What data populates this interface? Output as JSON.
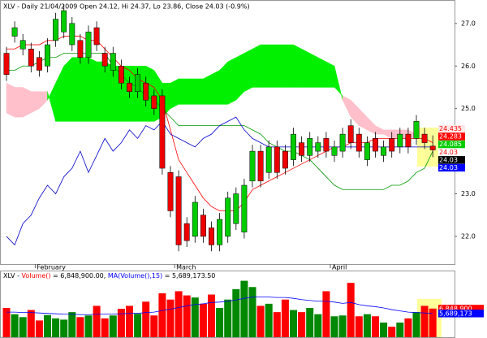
{
  "chart_data": {
    "type": "candlestick",
    "title": "XLV - Daily 21/04/2009 Open 24.12, Hi 24.37, Lo 23.86, Close 24.03 (-0.9%)",
    "categories": [
      null,
      null,
      null,
      null,
      "February",
      null,
      null,
      null,
      null,
      null,
      null,
      null,
      null,
      null,
      null,
      null,
      null,
      null,
      null,
      null,
      null,
      "March",
      null,
      null,
      null,
      null,
      null,
      null,
      null,
      null,
      null,
      null,
      null,
      null,
      null,
      null,
      null,
      null,
      null,
      null,
      "April",
      null,
      null,
      null,
      null,
      null,
      null,
      null,
      null,
      null,
      null,
      null,
      null
    ],
    "open": [
      26.3,
      26.7,
      26.4,
      26.4,
      26.2,
      26.0,
      26.6,
      26.8,
      26.5,
      26.6,
      26.2,
      26.9,
      26.3,
      25.9,
      26.0,
      25.6,
      25.4,
      25.6,
      25.3,
      25.3,
      23.5,
      23.4,
      22.3,
      22.0,
      22.5,
      22.2,
      21.8,
      22.0,
      22.3,
      22.1,
      23.3,
      24.0,
      23.5,
      24.1,
      24.0,
      23.8,
      24.2,
      23.9,
      24.0,
      24.3,
      23.9,
      24.0,
      24.6,
      24.4,
      23.8,
      24.3,
      23.9,
      24.3,
      24.1,
      24.4,
      24.3,
      24.4,
      24.12
    ],
    "high": [
      26.45,
      27.05,
      26.75,
      26.55,
      26.35,
      26.65,
      27.25,
      27.45,
      27.15,
      26.75,
      26.95,
      27.05,
      26.45,
      26.45,
      26.15,
      25.75,
      25.95,
      25.75,
      25.45,
      25.45,
      23.65,
      23.55,
      22.45,
      22.95,
      22.65,
      22.35,
      22.55,
      23.05,
      23.15,
      23.35,
      24.15,
      24.15,
      24.25,
      24.25,
      24.15,
      24.55,
      24.35,
      24.45,
      24.35,
      24.45,
      24.25,
      24.55,
      24.75,
      24.55,
      24.35,
      24.45,
      24.25,
      24.45,
      24.55,
      24.55,
      24.85,
      24.55,
      24.37
    ],
    "low": [
      25.65,
      26.55,
      26.25,
      25.85,
      25.75,
      25.85,
      26.45,
      26.65,
      26.35,
      26.05,
      26.05,
      26.35,
      25.85,
      25.75,
      25.45,
      25.25,
      25.25,
      25.05,
      24.85,
      23.45,
      22.45,
      21.65,
      21.75,
      21.85,
      21.85,
      21.65,
      21.65,
      21.85,
      22.15,
      21.95,
      23.15,
      23.15,
      23.35,
      23.35,
      23.45,
      23.65,
      23.75,
      23.75,
      23.85,
      23.85,
      23.75,
      23.85,
      24.05,
      23.85,
      23.65,
      23.85,
      23.75,
      23.85,
      23.95,
      23.95,
      24.15,
      24.05,
      23.86
    ],
    "close": [
      25.8,
      26.9,
      26.6,
      26.0,
      25.9,
      26.5,
      27.1,
      27.3,
      27.0,
      26.2,
      26.8,
      26.5,
      26.0,
      26.3,
      25.6,
      25.4,
      25.8,
      25.2,
      25.0,
      23.6,
      22.6,
      21.8,
      21.9,
      22.8,
      22.0,
      21.8,
      22.4,
      22.9,
      23.0,
      23.2,
      24.0,
      23.3,
      24.1,
      23.5,
      23.6,
      24.4,
      23.9,
      24.3,
      24.2,
      24.0,
      24.1,
      24.4,
      24.2,
      24.0,
      24.2,
      24.0,
      24.1,
      24.0,
      24.4,
      24.1,
      24.7,
      24.2,
      24.03
    ],
    "up_color": "#00cc00",
    "down_color": "#ee0000",
    "cloud": {
      "span_a": [
        24.9,
        24.8,
        24.8,
        24.9,
        25.0,
        25.2,
        25.6,
        26.0,
        26.2,
        26.2,
        26.2,
        26.1,
        26.1,
        26.0,
        26.0,
        26.0,
        26.0,
        26.0,
        25.9,
        25.6,
        25.6,
        25.7,
        25.7,
        25.7,
        25.7,
        25.8,
        25.9,
        26.1,
        26.2,
        26.3,
        26.4,
        26.5,
        26.5,
        26.5,
        26.5,
        26.5,
        26.4,
        26.3,
        26.2,
        26.1,
        26.0,
        25.2,
        24.8,
        24.6,
        24.5,
        24.4,
        24.4,
        24.3,
        24.3,
        24.3,
        24.3,
        24.2,
        24.2
      ],
      "span_b": [
        25.6,
        25.5,
        25.5,
        25.4,
        25.4,
        25.4,
        24.7,
        24.7,
        24.7,
        24.7,
        24.7,
        24.7,
        24.7,
        24.7,
        24.7,
        24.7,
        24.7,
        24.7,
        24.7,
        24.8,
        25.0,
        25.1,
        25.1,
        25.1,
        25.1,
        25.1,
        25.1,
        25.1,
        25.2,
        25.4,
        25.5,
        25.5,
        25.5,
        25.5,
        25.5,
        25.5,
        25.5,
        25.5,
        25.5,
        25.5,
        25.5,
        25.3,
        25.2,
        25.0,
        24.8,
        24.6,
        24.5,
        24.5,
        24.5,
        24.5,
        24.4,
        24.4,
        24.3
      ],
      "up_color": "#00f000",
      "down_color": "#ffc0cb"
    },
    "series": [
      {
        "color": "#ff0000",
        "values": [
          26.4,
          26.4,
          26.5,
          26.5,
          26.5,
          26.6,
          26.6,
          26.7,
          26.7,
          26.7,
          26.6,
          26.6,
          26.4,
          26.2,
          26.0,
          25.9,
          25.7,
          25.6,
          25.5,
          25.2,
          24.5,
          23.8,
          23.5,
          23.2,
          22.9,
          22.7,
          22.6,
          22.6,
          22.6,
          22.8,
          23.1,
          23.2,
          23.3,
          23.4,
          23.5,
          23.6,
          23.7,
          23.8,
          23.9,
          24.0,
          24.1,
          24.1,
          24.2,
          24.2,
          24.2,
          24.3,
          24.3,
          24.3,
          24.3,
          24.3,
          24.3,
          24.3,
          24.2
        ]
      },
      {
        "color": "#009900",
        "values": [
          25.9,
          25.9,
          26.0,
          26.0,
          26.1,
          26.2,
          26.2,
          26.3,
          26.3,
          26.3,
          26.3,
          26.3,
          26.3,
          26.0,
          25.8,
          25.6,
          25.5,
          25.3,
          25.2,
          25.0,
          24.8,
          24.6,
          24.6,
          24.6,
          24.6,
          24.6,
          24.6,
          24.6,
          24.6,
          24.6,
          24.5,
          24.4,
          24.2,
          24.1,
          24.0,
          24.0,
          23.9,
          23.8,
          23.6,
          23.4,
          23.2,
          23.1,
          23.1,
          23.1,
          23.1,
          23.1,
          23.1,
          23.2,
          23.2,
          23.3,
          23.5,
          23.6,
          24.0
        ]
      },
      {
        "color": "#0000cc",
        "values": [
          22.0,
          21.8,
          22.3,
          22.5,
          22.9,
          23.2,
          23.0,
          23.4,
          23.6,
          24.0,
          23.5,
          23.9,
          24.3,
          24.0,
          24.2,
          24.5,
          24.3,
          24.6,
          24.5,
          24.7,
          24.4,
          24.3,
          24.2,
          24.1,
          24.3,
          24.4,
          24.6,
          24.7,
          24.8,
          24.5,
          24.3,
          24.2,
          24.1,
          24.1,
          24.1,
          24.1,
          24.1,
          24.1,
          24.1,
          24.1,
          24.1,
          24.1,
          24.1,
          24.1,
          24.1,
          24.1,
          24.1,
          24.1,
          24.1,
          24.1,
          24.1,
          24.1,
          24.1
        ]
      }
    ],
    "ylim": [
      21.35,
      27.55
    ],
    "yticks": [
      {
        "value": 22,
        "label": "22.0"
      },
      {
        "value": 23,
        "label": "23.0"
      },
      {
        "value": 25,
        "label": "25.0"
      },
      {
        "value": 26,
        "label": "26.0"
      },
      {
        "value": 27,
        "label": "27.0"
      }
    ],
    "price_tags": [
      {
        "value": 24.435,
        "color": "#ffe8e8",
        "text_color": "#ff0000"
      },
      {
        "value": 24.283,
        "color": "#ff0000",
        "text_color": "#ffffff"
      },
      {
        "value": 24.085,
        "color": "#00cc00",
        "text_color": "#ffffff"
      },
      {
        "value": 24.03,
        "color": "#ffffff",
        "text_color": "#ff0000"
      },
      {
        "value": 24.03,
        "color": "#000000",
        "text_color": "#ffffff"
      },
      {
        "value": 24.03,
        "color": "#0000ff",
        "text_color": "#ffffff"
      }
    ],
    "volume": {
      "title_parts": [
        {
          "text": "XLV - ",
          "color": "#000000"
        },
        {
          "text": "Volume()",
          "color": "#ff0000"
        },
        {
          "text": " = 6,848,900.00, ",
          "color": "#000000"
        },
        {
          "text": "MA(Volume(),15)",
          "color": "#0000ff"
        },
        {
          "text": " = 5,689,173.50",
          "color": "#000000"
        }
      ],
      "values": [
        7000000,
        5500000,
        4800000,
        6500000,
        4000000,
        5300000,
        4500000,
        4200000,
        6000000,
        4800000,
        5200000,
        7500000,
        4500000,
        5200000,
        6800000,
        7500000,
        5600000,
        8500000,
        5200000,
        10500000,
        9000000,
        11000000,
        10000000,
        9500000,
        8000000,
        10200000,
        7000000,
        9000000,
        11500000,
        13500000,
        12000000,
        7500000,
        8000000,
        6000000,
        9000000,
        6500000,
        6000000,
        7000000,
        5500000,
        11000000,
        5000000,
        5200000,
        13000000,
        5000000,
        5500000,
        5000000,
        3500000,
        2500000,
        3500000,
        4500000,
        6000000,
        7500000,
        6848900
      ],
      "ma": {
        "color": "#0000ff",
        "values": [
          6000000,
          6000000,
          5900000,
          5900000,
          5800000,
          5700000,
          5600000,
          5500000,
          5500000,
          5400000,
          5400000,
          5500000,
          5500000,
          5500000,
          5600000,
          5700000,
          5700000,
          5900000,
          6000000,
          6400000,
          6700000,
          7100000,
          7500000,
          7800000,
          8000000,
          8300000,
          8400000,
          8600000,
          8900000,
          9300000,
          9600000,
          9600000,
          9600000,
          9500000,
          9500000,
          9300000,
          9000000,
          8800000,
          8600000,
          8600000,
          8400000,
          8100000,
          8300000,
          7800000,
          7500000,
          7300000,
          7000000,
          6600000,
          6300000,
          6000000,
          5900000,
          5800000,
          5689173.5
        ]
      },
      "ylim": [
        0,
        14000000
      ],
      "tags": [
        {
          "value": 6848900,
          "label": "6,848,900",
          "color": "#ff0000"
        },
        {
          "value": 5689173,
          "label": "5,689,173",
          "color": "#0000ff"
        }
      ]
    }
  }
}
